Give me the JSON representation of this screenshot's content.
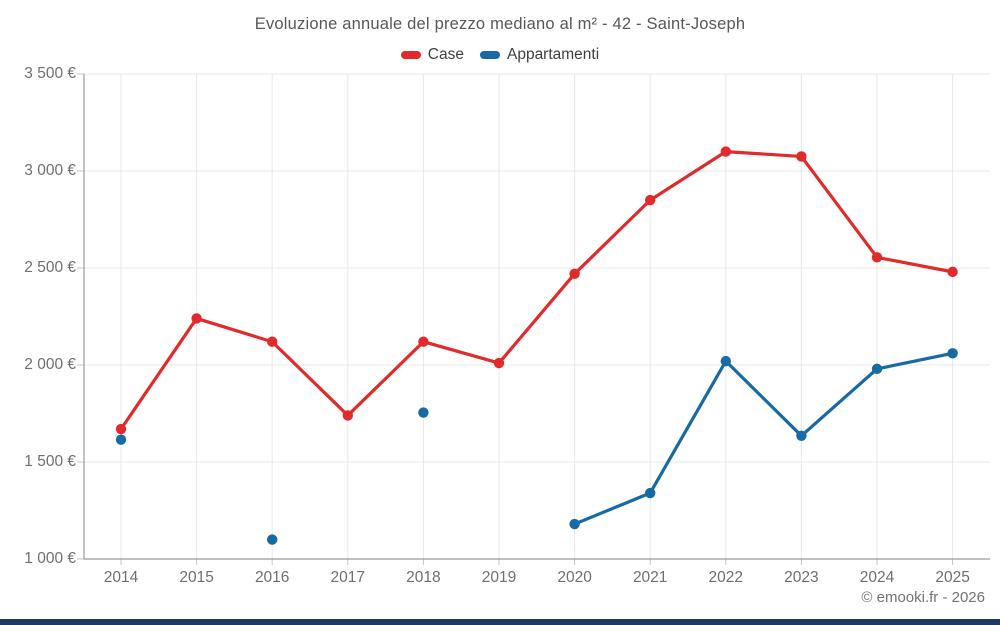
{
  "chart_data": {
    "type": "line",
    "title": "Evoluzione annuale del prezzo mediano al m² - 42 - Saint-Joseph",
    "categories": [
      "2014",
      "2015",
      "2016",
      "2017",
      "2018",
      "2019",
      "2020",
      "2021",
      "2022",
      "2023",
      "2024",
      "2025"
    ],
    "series": [
      {
        "name": "Case",
        "color": "#e12a2a",
        "values": [
          1670,
          2240,
          2120,
          1740,
          2120,
          2010,
          2470,
          2850,
          3100,
          3075,
          2555,
          2480
        ]
      },
      {
        "name": "Appartamenti",
        "color": "#176aa3",
        "values": [
          1615,
          null,
          1100,
          null,
          1755,
          null,
          1180,
          1340,
          2020,
          1635,
          1980,
          2060
        ]
      }
    ],
    "ylim": [
      1000,
      3500
    ],
    "ytick_values": [
      1000,
      1500,
      2000,
      2500,
      3000,
      3500
    ],
    "ytick_labels": [
      "1 000 €",
      "1 500 €",
      "2 000 €",
      "2 500 €",
      "3 000 €",
      "3 500 €"
    ],
    "xlabel": "",
    "ylabel": "",
    "grid": true,
    "legend_position": "top"
  },
  "footer": {
    "copyright": "© emooki.fr - 2026"
  },
  "colors": {
    "grid": "#e8e8e8",
    "axis": "#9a9a9a",
    "tick": "#c4c4c4",
    "title_text": "#57585a",
    "axis_text": "#6e6f71",
    "legend_text": "#3e3f41",
    "footer_text": "#737373",
    "bottom_bar": "#1c3a64"
  }
}
